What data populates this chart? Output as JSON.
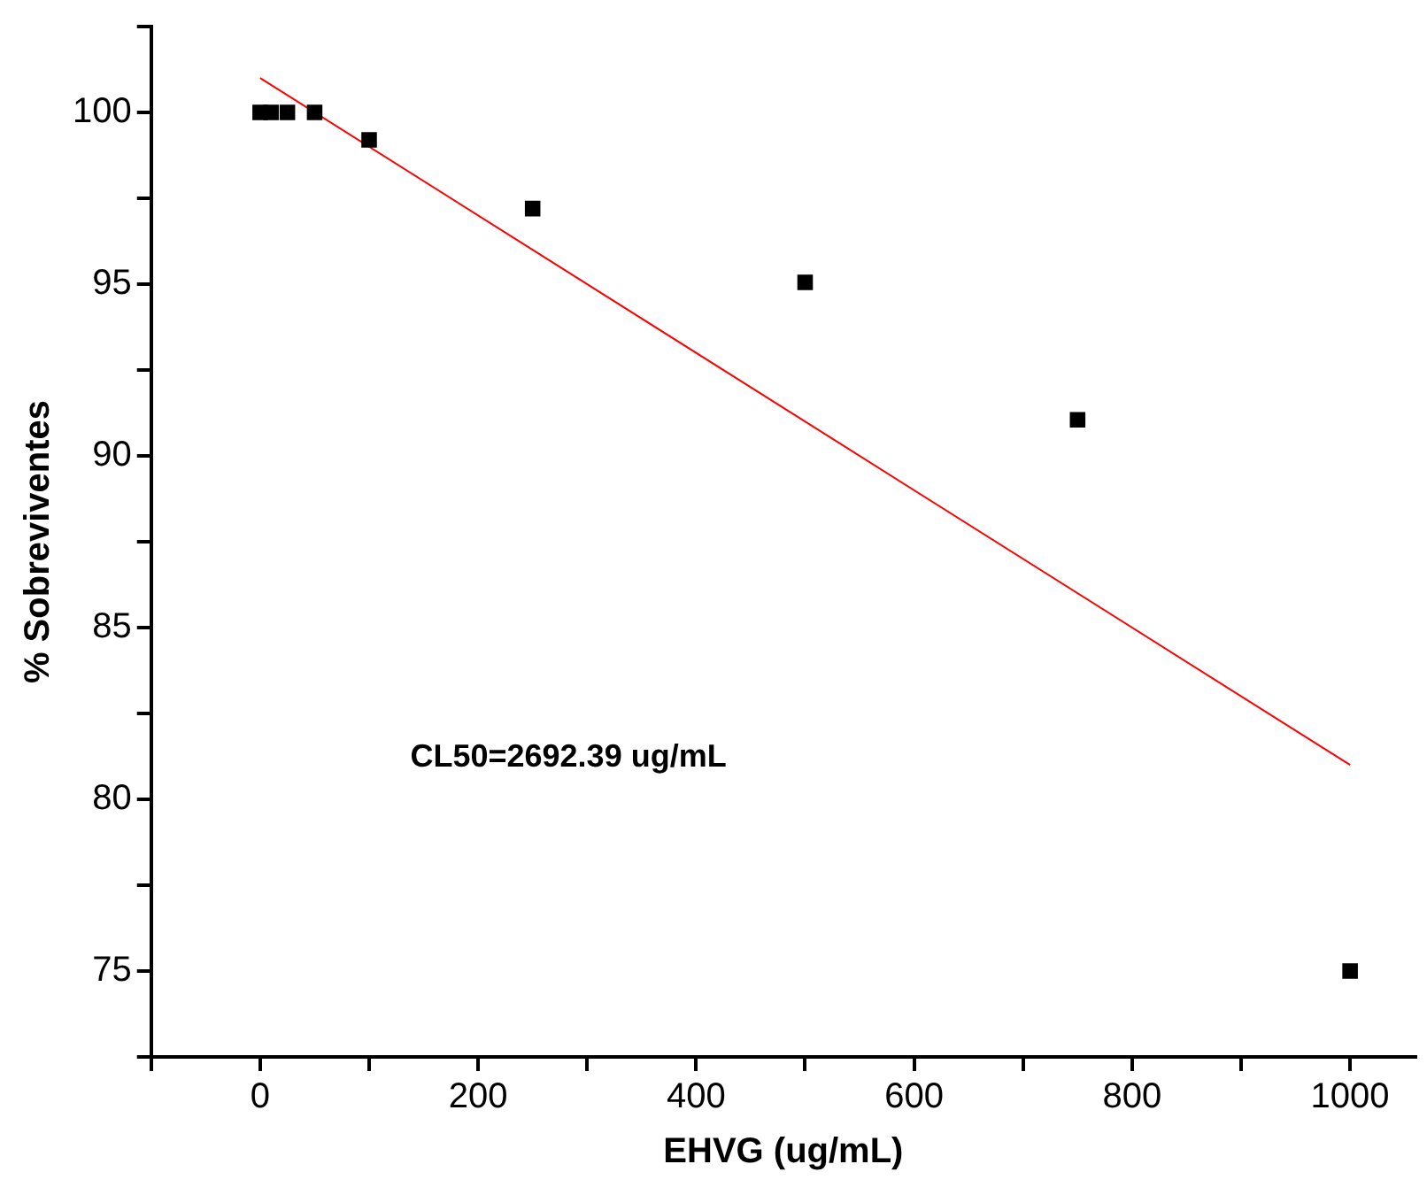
{
  "chart_data": {
    "type": "scatter",
    "xlabel": "EHVG (ug/mL)",
    "ylabel": "% Sobreviventes",
    "xlim": [
      -100,
      1060
    ],
    "ylim": [
      72.5,
      102.5
    ],
    "xticks": [
      {
        "value": -100,
        "label": null
      },
      0,
      {
        "value": 100,
        "label": null
      },
      200,
      {
        "value": 300,
        "label": null
      },
      400,
      {
        "value": 500,
        "label": null
      },
      600,
      {
        "value": 700,
        "label": null
      },
      800,
      {
        "value": 900,
        "label": null
      },
      1000
    ],
    "yticks": [
      {
        "value": 72.5,
        "label": null
      },
      75,
      {
        "value": 77.5,
        "label": null
      },
      80,
      {
        "value": 82.5,
        "label": null
      },
      85,
      {
        "value": 87.5,
        "label": null
      },
      90,
      {
        "value": 92.5,
        "label": null
      },
      95,
      {
        "value": 97.5,
        "label": null
      },
      100,
      {
        "value": 102.5,
        "label": null
      }
    ],
    "grid": false,
    "legend": false,
    "marker": "square",
    "annotations": [
      "CL50=2692.39 ug/mL"
    ],
    "series": [
      {
        "type": "scatter",
        "color": "#000000",
        "x": [
          0,
          10,
          25,
          50,
          100,
          250,
          500,
          750,
          1000
        ],
        "values": [
          100,
          100,
          100,
          100,
          99.2,
          97.2,
          95.05,
          91.05,
          75
        ]
      },
      {
        "type": "line",
        "color": "#ff0000",
        "marker": "none",
        "x": [
          0,
          1000
        ],
        "values": [
          101,
          81
        ]
      }
    ]
  }
}
